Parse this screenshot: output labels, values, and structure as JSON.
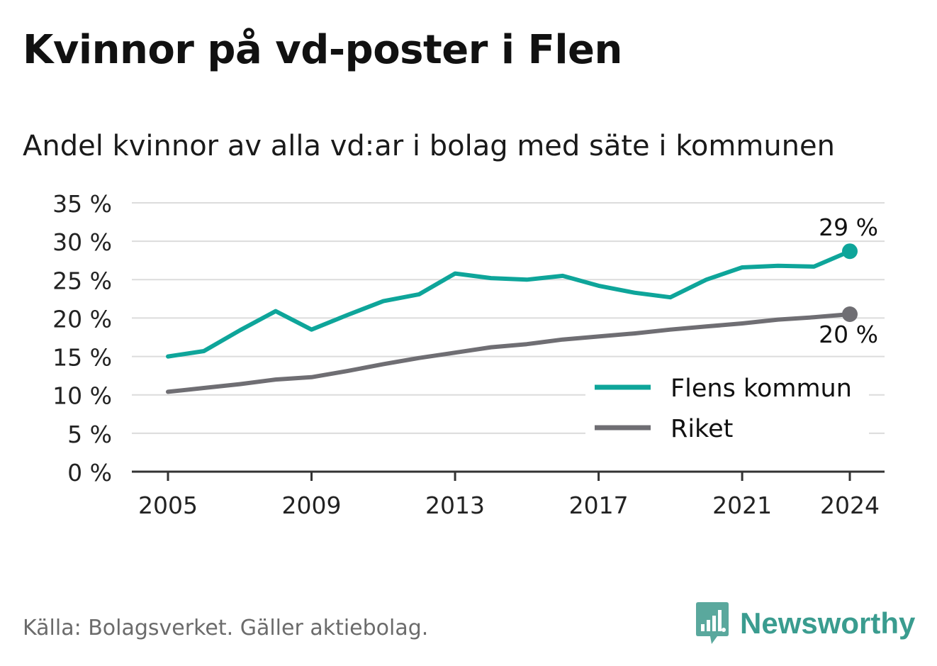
{
  "title": "Kvinnor på vd-poster i Flen",
  "subtitle": "Andel kvinnor av alla vd:ar i bolag med säte i kommunen",
  "source": "Källa: Bolagsverket. Gäller aktiebolag.",
  "brand": "Newsworthy",
  "colors": {
    "flen": "#0ea59a",
    "riket": "#6f6e73",
    "grid": "#dcdcdc",
    "axis": "#333333"
  },
  "chart_data": {
    "type": "line",
    "x": [
      2005,
      2006,
      2007,
      2008,
      2009,
      2010,
      2011,
      2012,
      2013,
      2014,
      2015,
      2016,
      2017,
      2018,
      2019,
      2020,
      2021,
      2022,
      2023,
      2024
    ],
    "series": [
      {
        "name": "Flens kommun",
        "color": "#0ea59a",
        "values": [
          15.0,
          15.7,
          18.4,
          20.9,
          18.5,
          20.4,
          22.2,
          23.1,
          25.8,
          25.2,
          25.0,
          25.5,
          24.2,
          23.3,
          22.7,
          25.0,
          26.6,
          26.8,
          26.7,
          28.7
        ]
      },
      {
        "name": "Riket",
        "color": "#6f6e73",
        "values": [
          10.4,
          10.9,
          11.4,
          12.0,
          12.3,
          13.1,
          14.0,
          14.8,
          15.5,
          16.2,
          16.6,
          17.2,
          17.6,
          18.0,
          18.5,
          18.9,
          19.3,
          19.8,
          20.1,
          20.5
        ]
      }
    ],
    "end_labels": [
      "29 %",
      "20 %"
    ],
    "y_ticks": [
      "0 %",
      "5 %",
      "10 %",
      "15 %",
      "20 %",
      "25 %",
      "30 %",
      "35 %"
    ],
    "y_tick_values": [
      0,
      5,
      10,
      15,
      20,
      25,
      30,
      35
    ],
    "x_ticks": [
      2005,
      2009,
      2013,
      2017,
      2021,
      2024
    ],
    "ylim": [
      0,
      35
    ],
    "xlabel": "",
    "ylabel": "",
    "grid": true,
    "legend_position": "bottom-right"
  }
}
